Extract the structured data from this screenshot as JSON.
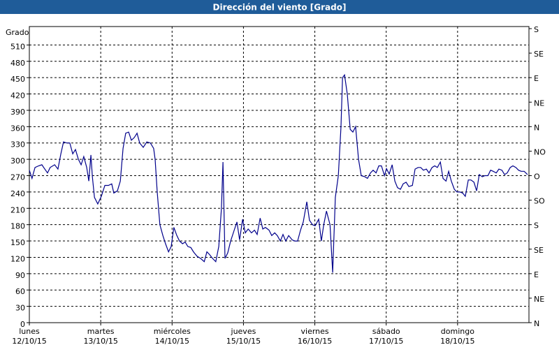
{
  "chart_data": {
    "type": "line",
    "title": "Dirección del viento [Grado]",
    "y_label": "Grado",
    "xlim": [
      0,
      168
    ],
    "xticks": [
      {
        "value": 0,
        "label": "lunes 12/10/15"
      },
      {
        "value": 24,
        "label": "martes 13/10/15"
      },
      {
        "value": 48,
        "label": "miércoles 14/10/15"
      },
      {
        "value": 72,
        "label": "jueves 15/10/15"
      },
      {
        "value": 96,
        "label": "viernes 16/10/15"
      },
      {
        "value": 120,
        "label": "sábado 17/10/15"
      },
      {
        "value": 144,
        "label": "domingo 18/10/15"
      }
    ],
    "ylim": [
      0,
      540
    ],
    "yticks": [
      0,
      30,
      60,
      90,
      120,
      150,
      180,
      210,
      240,
      270,
      300,
      330,
      360,
      390,
      420,
      450,
      480,
      510
    ],
    "y2lim": [
      0,
      540
    ],
    "y2ticks": [
      {
        "value": 0,
        "label": "N"
      },
      {
        "value": 45,
        "label": "NE"
      },
      {
        "value": 90,
        "label": "E"
      },
      {
        "value": 135,
        "label": "SE"
      },
      {
        "value": 180,
        "label": "S"
      },
      {
        "value": 225,
        "label": "SO"
      },
      {
        "value": 270,
        "label": "O"
      },
      {
        "value": 315,
        "label": "NO"
      },
      {
        "value": 360,
        "label": "N"
      },
      {
        "value": 405,
        "label": "NE"
      },
      {
        "value": 450,
        "label": "E"
      },
      {
        "value": 495,
        "label": "SE"
      },
      {
        "value": 540,
        "label": "S"
      }
    ],
    "grid": true,
    "x": [
      0,
      0.9,
      1.9,
      3.1,
      4.2,
      5.2,
      6.1,
      7.0,
      8.5,
      9.6,
      10.6,
      11.5,
      12.5,
      13.6,
      14.6,
      15.5,
      16.5,
      17.4,
      18.3,
      19.3,
      20.0,
      20.7,
      21.2,
      21.9,
      23.0,
      24.2,
      25.4,
      26.6,
      27.7,
      28.4,
      29.6,
      30.6,
      31.5,
      32.4,
      33.4,
      34.3,
      35.3,
      36.2,
      37.1,
      38.3,
      39.5,
      40.7,
      41.8,
      42.3,
      43.0,
      43.9,
      44.9,
      45.8,
      46.8,
      47.7,
      48.6,
      49.6,
      50.5,
      51.5,
      52.4,
      53.3,
      54.3,
      55.2,
      56.4,
      57.6,
      58.8,
      59.7,
      60.6,
      61.6,
      62.7,
      63.7,
      64.6,
      65.1,
      65.8,
      66.7,
      67.7,
      68.9,
      69.8,
      70.7,
      71.7,
      72.6,
      73.6,
      74.7,
      75.7,
      76.6,
      77.6,
      78.5,
      79.4,
      80.6,
      81.5,
      82.5,
      83.4,
      84.4,
      85.3,
      86.2,
      87.2,
      88.4,
      89.3,
      90.2,
      91.2,
      92.1,
      93.3,
      94.2,
      95.2,
      96.1,
      97.3,
      98.2,
      99.0,
      99.9,
      101.1,
      102.0,
      102.9,
      103.9,
      104.8,
      105.3,
      106.0,
      106.9,
      107.9,
      108.8,
      109.7,
      110.7,
      111.6,
      112.8,
      113.7,
      114.7,
      115.6,
      116.6,
      117.5,
      118.4,
      119.4,
      120.1,
      121.0,
      122.0,
      122.9,
      123.8,
      124.8,
      125.7,
      126.7,
      127.6,
      128.8,
      129.7,
      130.7,
      131.6,
      132.5,
      133.5,
      134.4,
      135.4,
      136.3,
      137.2,
      138.2,
      139.1,
      140.1,
      141.0,
      141.9,
      142.9,
      143.8,
      144.8,
      145.7,
      146.6,
      147.6,
      148.5,
      149.5,
      150.4,
      151.3,
      152.3,
      153.2,
      154.2,
      155.1,
      156.0,
      157.0,
      157.9,
      158.9,
      159.8,
      160.7,
      161.7,
      162.6,
      163.6,
      164.5,
      165.4,
      166.4,
      167.5
    ],
    "series": [
      {
        "color": "#00008b",
        "values": [
          280,
          265,
          285,
          288,
          290,
          282,
          275,
          285,
          290,
          282,
          310,
          332,
          330,
          330,
          310,
          318,
          300,
          290,
          305,
          285,
          260,
          308,
          268,
          230,
          218,
          232,
          252,
          252,
          255,
          238,
          242,
          260,
          320,
          348,
          350,
          335,
          340,
          348,
          330,
          322,
          332,
          330,
          320,
          300,
          240,
          180,
          160,
          145,
          130,
          140,
          175,
          160,
          150,
          145,
          148,
          140,
          138,
          130,
          122,
          118,
          112,
          130,
          125,
          118,
          112,
          140,
          210,
          295,
          118,
          128,
          150,
          170,
          185,
          152,
          190,
          165,
          172,
          165,
          170,
          162,
          192,
          172,
          175,
          170,
          160,
          165,
          160,
          150,
          162,
          150,
          160,
          152,
          150,
          150,
          170,
          185,
          222,
          188,
          180,
          178,
          190,
          150,
          180,
          205,
          180,
          92,
          230,
          270,
          360,
          450,
          455,
          420,
          355,
          350,
          360,
          300,
          270,
          268,
          265,
          275,
          280,
          275,
          288,
          288,
          270,
          283,
          273,
          290,
          260,
          248,
          245,
          255,
          258,
          250,
          252,
          282,
          285,
          285,
          280,
          282,
          275,
          285,
          288,
          285,
          295,
          265,
          260,
          278,
          260,
          245,
          240,
          240,
          238,
          232,
          262,
          262,
          258,
          242,
          272,
          268,
          270,
          270,
          280,
          278,
          275,
          282,
          280,
          272,
          275,
          285,
          288,
          285,
          280,
          278,
          278,
          272
        ]
      }
    ]
  }
}
